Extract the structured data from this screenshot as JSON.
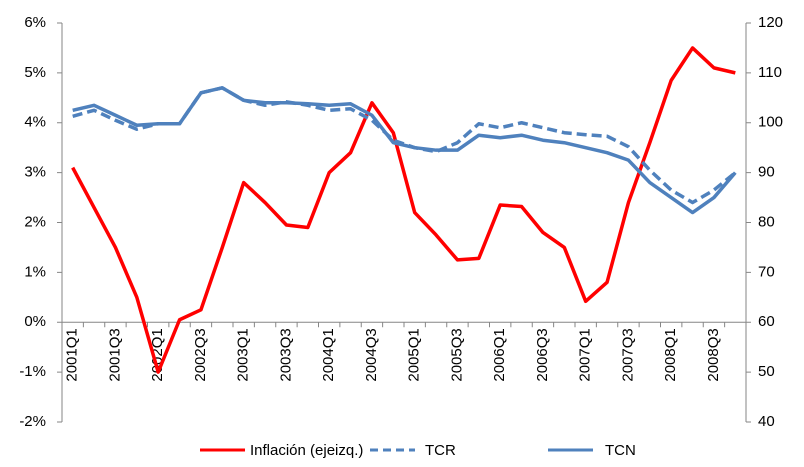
{
  "chart_data": {
    "type": "line",
    "categories": [
      "2001Q1",
      null,
      "2001Q3",
      null,
      "2002Q1",
      null,
      "2002Q3",
      null,
      "2003Q1",
      null,
      "2003Q3",
      null,
      "2004Q1",
      null,
      "2004Q3",
      null,
      "2005Q1",
      null,
      "2005Q3",
      null,
      "2006Q1",
      null,
      "2006Q3",
      null,
      "2007Q1",
      null,
      "2007Q3",
      null,
      "2008Q1",
      null,
      "2008Q3",
      null
    ],
    "series": [
      {
        "name": "Inflación (ejeizq.)",
        "color": "#ff0000",
        "line_style": "solid",
        "values": [
          3.1,
          2.3,
          1.5,
          0.5,
          -1.0,
          0.05,
          0.25,
          1.5,
          2.8,
          2.4,
          1.95,
          1.9,
          3.0,
          3.4,
          4.4,
          3.8,
          2.2,
          1.75,
          1.25,
          1.28,
          2.35,
          2.32,
          1.8,
          1.5,
          0.42,
          0.8,
          2.4,
          3.6,
          4.85,
          5.5,
          5.1,
          5.0
        ]
      },
      {
        "name": "TCR",
        "color": "#4f81bd",
        "line_style": "dashed",
        "axis": "y2",
        "values": [
          101.3,
          102.5,
          100.5,
          98.7,
          99.8,
          99.8,
          106,
          107,
          104.5,
          103.5,
          104.2,
          103.5,
          102.5,
          102.8,
          100.5,
          96.5,
          95,
          94.2,
          96,
          99.8,
          99,
          100,
          99,
          98,
          97.6,
          97.3,
          95.2,
          90.5,
          86.5,
          84,
          86.5,
          90
        ]
      },
      {
        "name": "TCN",
        "color": "#4f81bd",
        "line_style": "solid",
        "axis": "y2",
        "values": [
          102.5,
          103.5,
          101.5,
          99.5,
          99.8,
          99.8,
          106,
          107,
          104.5,
          104,
          104,
          103.8,
          103.5,
          103.8,
          101.5,
          96,
          95,
          94.5,
          94.5,
          97.5,
          97,
          97.5,
          96.5,
          96,
          95,
          94,
          92.5,
          88,
          85,
          82,
          85,
          90
        ]
      }
    ],
    "ylim": [
      -2,
      6
    ],
    "yticks": [
      {
        "value": -2,
        "label": "-2%"
      },
      {
        "value": -1,
        "label": "-1%"
      },
      {
        "value": 0,
        "label": "0%"
      },
      {
        "value": 1,
        "label": "1%"
      },
      {
        "value": 2,
        "label": "2%"
      },
      {
        "value": 3,
        "label": "3%"
      },
      {
        "value": 4,
        "label": "4%"
      },
      {
        "value": 5,
        "label": "5%"
      },
      {
        "value": 6,
        "label": "6%"
      }
    ],
    "y2lim": [
      40,
      120
    ],
    "y2ticks": [
      40,
      50,
      60,
      70,
      80,
      90,
      100,
      110,
      120
    ],
    "grid": false,
    "legend": "bottom"
  }
}
